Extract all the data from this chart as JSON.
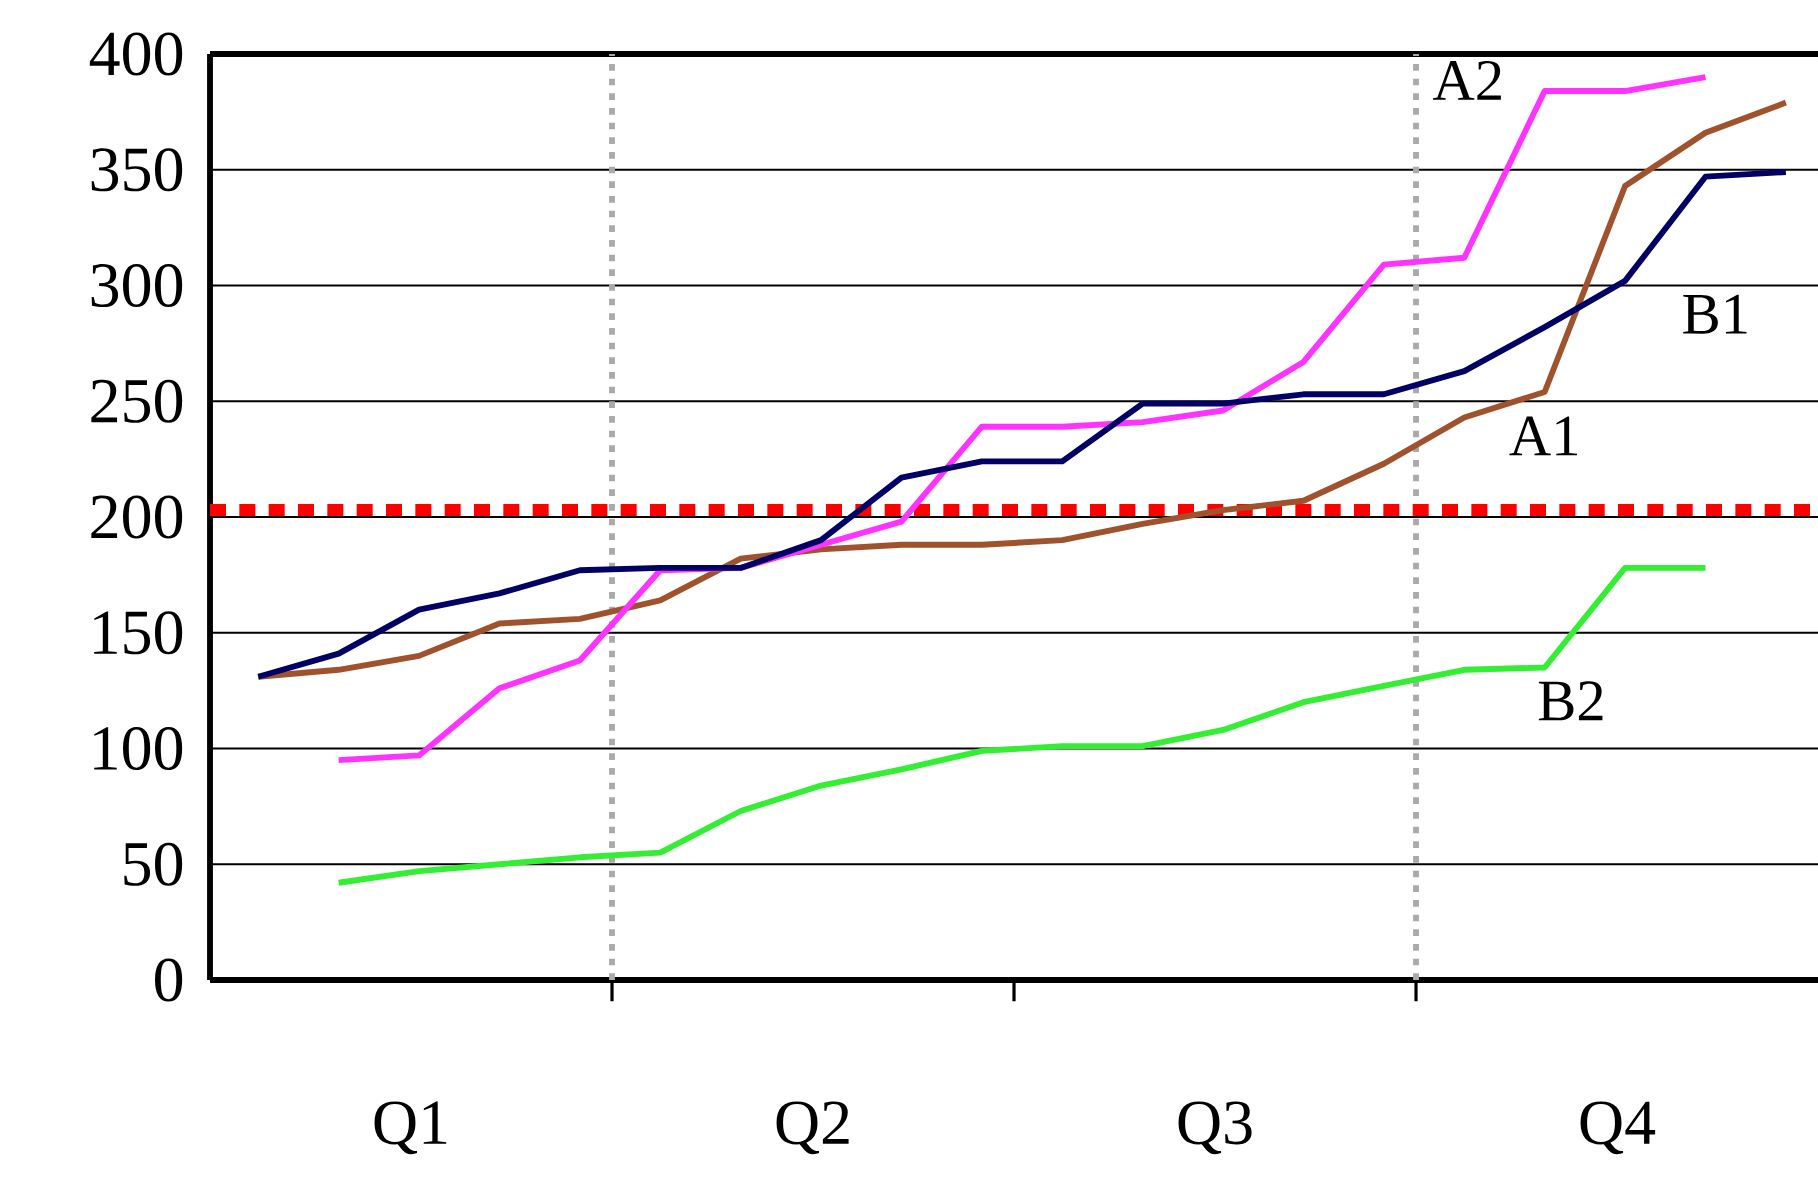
{
  "chart_data": {
    "type": "line",
    "categories": [
      null,
      null,
      null,
      null,
      null,
      null,
      null,
      null,
      null,
      null,
      null,
      null,
      null,
      null,
      null,
      null,
      null,
      null,
      null,
      null
    ],
    "series": [
      {
        "name": "A1",
        "color": "#a0522d",
        "values": [
          131,
          134,
          140,
          154,
          156,
          164,
          182,
          186,
          188,
          188,
          190,
          197,
          203,
          207,
          223,
          243,
          254,
          343,
          366,
          379
        ]
      },
      {
        "name": "A2",
        "color": "#ff33ff",
        "values": [
          null,
          95,
          97,
          126,
          138,
          177,
          178,
          188,
          198,
          239,
          239,
          241,
          246,
          267,
          309,
          312,
          384,
          384,
          390,
          null
        ]
      },
      {
        "name": "B1",
        "color": "#000066",
        "values": [
          131,
          141,
          160,
          167,
          177,
          178,
          178,
          190,
          217,
          224,
          224,
          249,
          249,
          253,
          253,
          263,
          282,
          302,
          347,
          349
        ]
      },
      {
        "name": "B2",
        "color": "#33ee33",
        "values": [
          null,
          42,
          47,
          50,
          53,
          55,
          73,
          84,
          91,
          99,
          101,
          101,
          108,
          120,
          127,
          134,
          135,
          178,
          178,
          null
        ]
      }
    ],
    "ylim": [
      0,
      400
    ],
    "yticks": [
      0,
      50,
      100,
      150,
      200,
      250,
      300,
      350,
      400
    ],
    "grid": "y",
    "legend": false,
    "marker": "none",
    "line_style": "solid",
    "annotations": [
      "Q1",
      "Q2",
      "Q3",
      "Q4"
    ],
    "ref_lines": [
      {
        "axis": "y",
        "value": 203,
        "color": "#ff0000",
        "line_style": "dotted"
      }
    ]
  }
}
